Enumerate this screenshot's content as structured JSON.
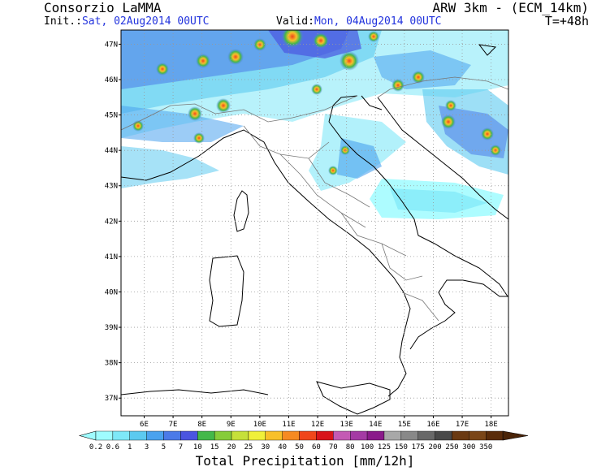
{
  "header": {
    "producer": "Consorzio LaMMA",
    "model": "ARW 3km - (ECM_14km)",
    "init_label": "Init.:",
    "init_value": "Sat, 02Aug2014 00UTC",
    "valid_label": "Valid:",
    "valid_value": "Mon, 04Aug2014 00UTC",
    "lead_time": "T=+48h",
    "highlight_color": "#2233dd"
  },
  "map": {
    "region": "Italy",
    "lon_range": [
      5.2,
      18.6
    ],
    "lat_range": [
      36.5,
      47.4
    ],
    "lat_ticks": [
      "47N",
      "46N",
      "45N",
      "44N",
      "43N",
      "42N",
      "41N",
      "40N",
      "39N",
      "38N",
      "37N"
    ],
    "lat_values": [
      47,
      46,
      45,
      44,
      43,
      42,
      41,
      40,
      39,
      38,
      37
    ],
    "lon_ticks": [
      "6E",
      "7E",
      "8E",
      "9E",
      "10E",
      "11E",
      "12E",
      "13E",
      "14E",
      "15E",
      "16E",
      "17E",
      "18E"
    ],
    "lon_values": [
      6,
      7,
      8,
      9,
      10,
      11,
      12,
      13,
      14,
      15,
      16,
      17,
      18
    ],
    "grid": "dotted"
  },
  "colorbar": {
    "title": "Total Precipitation [mm/12h]",
    "levels": [
      "0.2",
      "0.6",
      "1",
      "3",
      "5",
      "7",
      "10",
      "15",
      "20",
      "25",
      "30",
      "40",
      "50",
      "60",
      "70",
      "80",
      "100",
      "125",
      "150",
      "175",
      "200",
      "250",
      "300",
      "350"
    ],
    "colors": [
      "#9ffcff",
      "#7ee8f8",
      "#5ccaf0",
      "#4aa2ee",
      "#4b7ae8",
      "#4b55e0",
      "#44b84a",
      "#86cc3a",
      "#c6e03a",
      "#f0f03a",
      "#f8c02a",
      "#f68a22",
      "#f0461a",
      "#d8141a",
      "#c45ab4",
      "#a43aa4",
      "#8a1a8a",
      "#a8a8a8",
      "#888888",
      "#686868",
      "#484848",
      "#6a3a12",
      "#7a4618",
      "#5a2c0a",
      "#4a2408"
    ]
  }
}
